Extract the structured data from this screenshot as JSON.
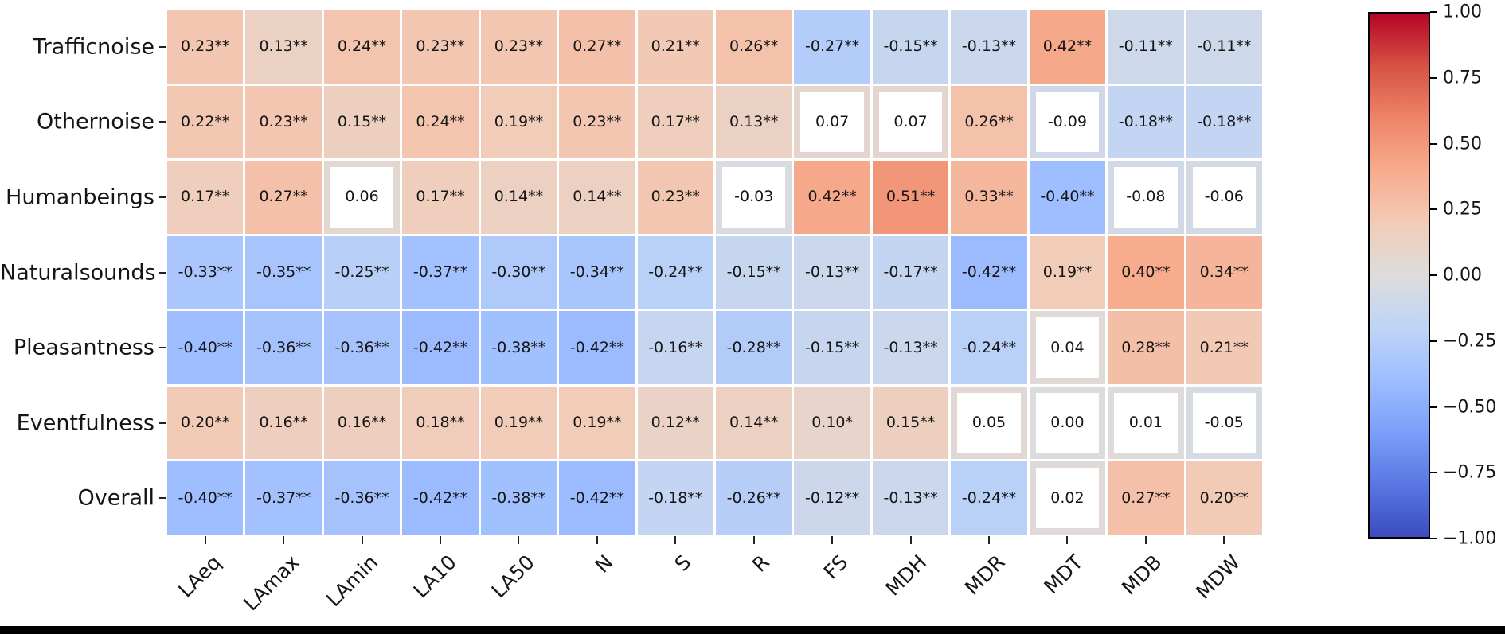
{
  "figure": {
    "background": "#ffffff",
    "bottom_edge_color": "#000000"
  },
  "chart_data": {
    "type": "heatmap",
    "title": "",
    "rows": [
      "Trafficnoise",
      "Othernoise",
      "Humanbeings",
      "Naturalsounds",
      "Pleasantness",
      "Eventfulness",
      "Overall"
    ],
    "columns": [
      "LAeq",
      "LAmax",
      "LAmin",
      "LA10",
      "LA50",
      "N",
      "S",
      "R",
      "FS",
      "MDH",
      "MDR",
      "MDT",
      "MDB",
      "MDW"
    ],
    "labels": [
      [
        "0.23**",
        "0.13**",
        "0.24**",
        "0.23**",
        "0.23**",
        "0.27**",
        "0.21**",
        "0.26**",
        "-0.27**",
        "-0.15**",
        "-0.13**",
        "0.42**",
        "-0.11**",
        "-0.11**"
      ],
      [
        "0.22**",
        "0.23**",
        "0.15**",
        "0.24**",
        "0.19**",
        "0.23**",
        "0.17**",
        "0.13**",
        "0.07",
        "0.07",
        "0.26**",
        "-0.09",
        "-0.18**",
        "-0.18**"
      ],
      [
        "0.17**",
        "0.27**",
        "0.06",
        "0.17**",
        "0.14**",
        "0.14**",
        "0.23**",
        "-0.03",
        "0.42**",
        "0.51**",
        "0.33**",
        "-0.40**",
        "-0.08",
        "-0.06"
      ],
      [
        "-0.33**",
        "-0.35**",
        "-0.25**",
        "-0.37**",
        "-0.30**",
        "-0.34**",
        "-0.24**",
        "-0.15**",
        "-0.13**",
        "-0.17**",
        "-0.42**",
        "0.19**",
        "0.40**",
        "0.34**"
      ],
      [
        "-0.40**",
        "-0.36**",
        "-0.36**",
        "-0.42**",
        "-0.38**",
        "-0.42**",
        "-0.16**",
        "-0.28**",
        "-0.15**",
        "-0.13**",
        "-0.24**",
        "0.04",
        "0.28**",
        "0.21**"
      ],
      [
        "0.20**",
        "0.16**",
        "0.16**",
        "0.18**",
        "0.19**",
        "0.19**",
        "0.12**",
        "0.14**",
        "0.10*",
        "0.15**",
        "0.05",
        "0.00",
        "0.01",
        "-0.05"
      ],
      [
        "-0.40**",
        "-0.37**",
        "-0.36**",
        "-0.42**",
        "-0.38**",
        "-0.42**",
        "-0.18**",
        "-0.26**",
        "-0.12**",
        "-0.13**",
        "-0.24**",
        "0.02",
        "0.27**",
        "0.20**"
      ]
    ],
    "values": [
      [
        0.23,
        0.13,
        0.24,
        0.23,
        0.23,
        0.27,
        0.21,
        0.26,
        -0.27,
        -0.15,
        -0.13,
        0.42,
        -0.11,
        -0.11
      ],
      [
        0.22,
        0.23,
        0.15,
        0.24,
        0.19,
        0.23,
        0.17,
        0.13,
        0.07,
        0.07,
        0.26,
        -0.09,
        -0.18,
        -0.18
      ],
      [
        0.17,
        0.27,
        0.06,
        0.17,
        0.14,
        0.14,
        0.23,
        -0.03,
        0.42,
        0.51,
        0.33,
        -0.4,
        -0.08,
        -0.06
      ],
      [
        -0.33,
        -0.35,
        -0.25,
        -0.37,
        -0.3,
        -0.34,
        -0.24,
        -0.15,
        -0.13,
        -0.17,
        -0.42,
        0.19,
        0.4,
        0.34
      ],
      [
        -0.4,
        -0.36,
        -0.36,
        -0.42,
        -0.38,
        -0.42,
        -0.16,
        -0.28,
        -0.15,
        -0.13,
        -0.24,
        0.04,
        0.28,
        0.21
      ],
      [
        0.2,
        0.16,
        0.16,
        0.18,
        0.19,
        0.19,
        0.12,
        0.14,
        0.1,
        0.15,
        0.05,
        0.0,
        0.01,
        -0.05
      ],
      [
        -0.4,
        -0.37,
        -0.36,
        -0.42,
        -0.38,
        -0.42,
        -0.18,
        -0.26,
        -0.12,
        -0.13,
        -0.24,
        0.02,
        0.27,
        0.2
      ]
    ],
    "vmin": -1,
    "vmax": 1,
    "colormap": "coolwarm",
    "colormap_stops": [
      "#3b4cc0",
      "#5977e3",
      "#7b9ff9",
      "#9ebeff",
      "#c0d4f5",
      "#dddcdc",
      "#f2cbb7",
      "#f7ac8e",
      "#ee8468",
      "#d65244",
      "#b40426"
    ],
    "mask_rule": "cells without an asterisk are drawn as a white inset box over the cell color",
    "grid_line_color": "#ffffff",
    "colorbar": {
      "position": "right",
      "tick_labels": [
        "1.00",
        "0.75",
        "0.50",
        "0.25",
        "0.00",
        "−0.25",
        "−0.50",
        "−0.75",
        "−1.00"
      ],
      "tick_values": [
        1.0,
        0.75,
        0.5,
        0.25,
        0.0,
        -0.25,
        -0.5,
        -0.75,
        -1.0
      ]
    }
  }
}
